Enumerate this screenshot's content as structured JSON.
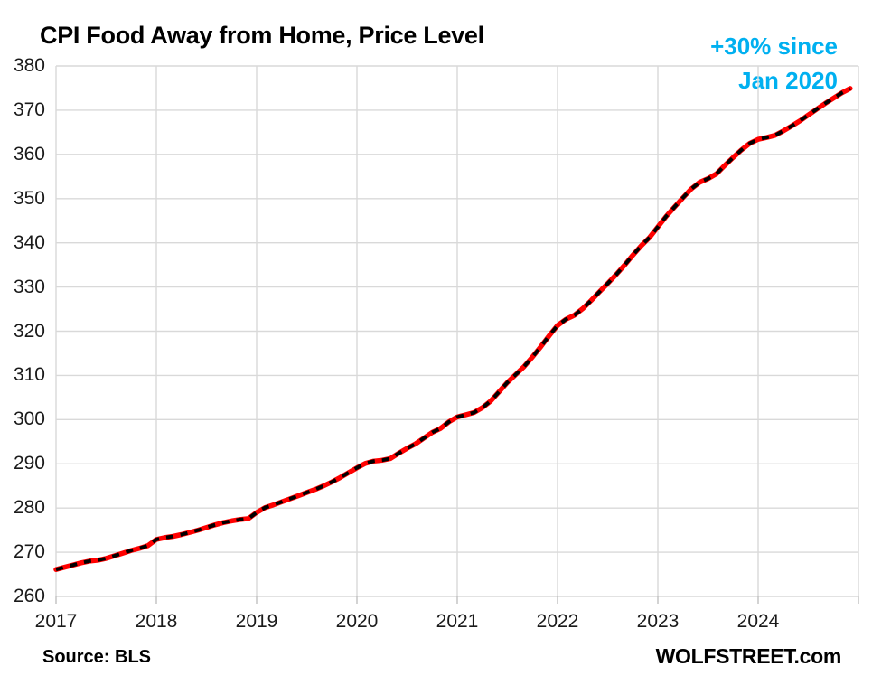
{
  "page": {
    "title": "CPI Food Away from Home, Price Level",
    "annotation_line1": "+30% since",
    "annotation_line2": "Jan 2020",
    "annotation_color": "#00B0F0",
    "source": "Source: BLS",
    "watermark": "WOLFSTREET.com"
  },
  "chart_data": {
    "type": "line",
    "title": "CPI Food Away from Home, Price Level",
    "xlabel": "",
    "ylabel": "",
    "grid": true,
    "legend": "none",
    "ylim": [
      260,
      380
    ],
    "y_tick_values": [
      260,
      270,
      280,
      290,
      300,
      310,
      320,
      330,
      340,
      350,
      360,
      370,
      380
    ],
    "x_tick_labels": [
      "2017",
      "2018",
      "2019",
      "2020",
      "2021",
      "2022",
      "2023",
      "2024"
    ],
    "months_per_tick": 12,
    "total_months": 96,
    "grid_color": "#D9D9D9",
    "tick_color": "#C0C0C0",
    "line_color": "#FF0000",
    "dash_overlay_color": "#000000",
    "series": [
      {
        "name": "CPI Food Away from Home (index, monthly)",
        "x_start": "2017-01",
        "x_freq": "monthly",
        "values": [
          266.1,
          266.6,
          267.1,
          267.6,
          268.0,
          268.2,
          268.6,
          269.2,
          269.8,
          270.4,
          270.9,
          271.5,
          272.9,
          273.3,
          273.6,
          274.0,
          274.5,
          275.0,
          275.6,
          276.2,
          276.7,
          277.1,
          277.4,
          277.6,
          279.0,
          280.1,
          280.7,
          281.4,
          282.1,
          282.8,
          283.5,
          284.2,
          285.0,
          285.9,
          286.9,
          288.0,
          289.1,
          290.1,
          290.6,
          290.8,
          291.2,
          292.4,
          293.5,
          294.5,
          295.8,
          297.1,
          298.0,
          299.5,
          300.6,
          301.1,
          301.6,
          302.7,
          304.2,
          306.3,
          308.4,
          310.2,
          312.0,
          314.2,
          316.5,
          319.0,
          321.3,
          322.7,
          323.6,
          325.1,
          326.9,
          328.9,
          330.8,
          332.8,
          334.9,
          337.2,
          339.3,
          341.2,
          343.6,
          346.0,
          348.1,
          350.2,
          352.2,
          353.7,
          354.5,
          355.6,
          357.5,
          359.3,
          361.0,
          362.5,
          363.4,
          363.8,
          364.3,
          365.3,
          366.4,
          367.6,
          368.9,
          370.2,
          371.5,
          372.7,
          373.9,
          374.9
        ]
      }
    ]
  }
}
